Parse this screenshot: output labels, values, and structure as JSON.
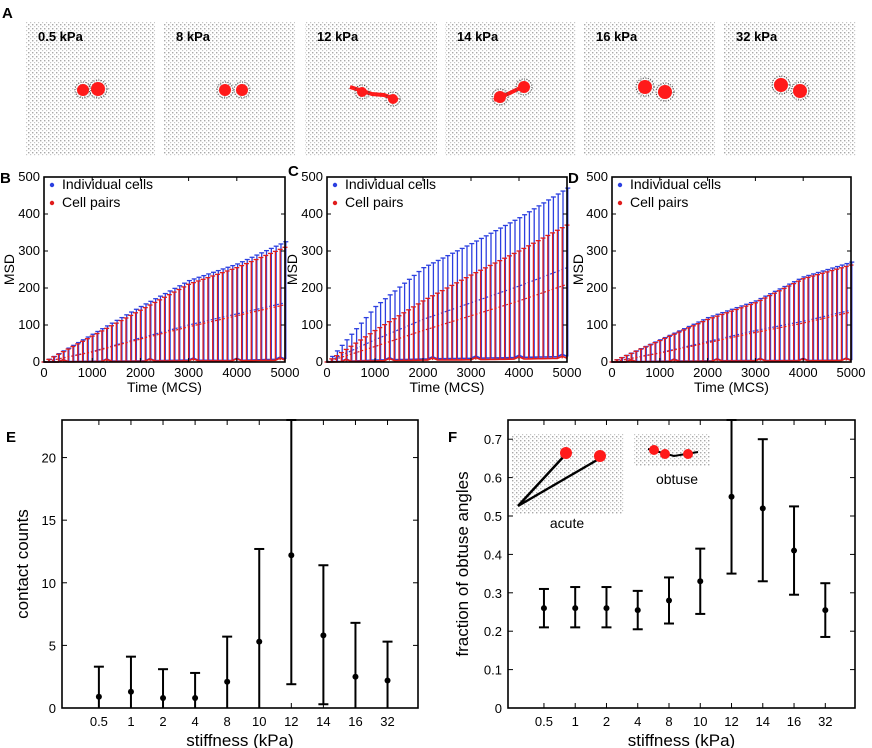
{
  "panel_labels": {
    "a": "A",
    "b": "B",
    "c": "C",
    "d": "D",
    "e": "E",
    "f": "F"
  },
  "snapshots": [
    {
      "label": "0.5 kPa",
      "cells": 2
    },
    {
      "label": "8 kPa",
      "cells": 2
    },
    {
      "label": "12 kPa",
      "cells": 2
    },
    {
      "label": "14 kPa",
      "cells": 2
    },
    {
      "label": "16 kPa",
      "cells": 2
    },
    {
      "label": "32 kPa",
      "cells": 2
    }
  ],
  "colors": {
    "individual": "#2b3fe0",
    "pairs": "#e01c1c",
    "cell": "#ff1a1a",
    "grid": "#b5b5b5"
  },
  "chart_data": [
    {
      "id": "B",
      "type": "line",
      "xlabel": "Time (MCS)",
      "ylabel": "MSD",
      "xlim": [
        0,
        5000
      ],
      "ylim": [
        0,
        500
      ],
      "xticks": [
        0,
        1000,
        2000,
        3000,
        4000,
        5000
      ],
      "yticks": [
        0,
        100,
        200,
        300,
        400,
        500
      ],
      "x": [
        0,
        1000,
        2000,
        3000,
        4000,
        5000
      ],
      "series": [
        {
          "name": "Individual cells",
          "mean": [
            0,
            28,
            65,
            100,
            130,
            160
          ],
          "upper": [
            0,
            75,
            150,
            220,
            265,
            325
          ],
          "lower": [
            0,
            2,
            3,
            5,
            4,
            8
          ]
        },
        {
          "name": "Cell pairs",
          "mean": [
            0,
            27,
            62,
            95,
            125,
            155
          ],
          "upper": [
            0,
            70,
            140,
            210,
            255,
            310
          ],
          "lower": [
            0,
            1,
            2,
            3,
            3,
            5
          ]
        }
      ]
    },
    {
      "id": "C",
      "type": "line",
      "xlabel": "Time (MCS)",
      "ylabel": "MSD",
      "xlim": [
        0,
        5000
      ],
      "ylim": [
        0,
        500
      ],
      "xticks": [
        0,
        1000,
        2000,
        3000,
        4000,
        5000
      ],
      "yticks": [
        0,
        100,
        200,
        300,
        400,
        500
      ],
      "x": [
        0,
        1000,
        2000,
        3000,
        4000,
        5000
      ],
      "series": [
        {
          "name": "Individual cells",
          "mean": [
            0,
            60,
            115,
            160,
            205,
            255
          ],
          "upper": [
            0,
            150,
            255,
            320,
            390,
            470
          ],
          "lower": [
            0,
            5,
            8,
            10,
            12,
            15
          ]
        },
        {
          "name": "Cell pairs",
          "mean": [
            0,
            42,
            85,
            125,
            165,
            210
          ],
          "upper": [
            0,
            85,
            165,
            235,
            300,
            370
          ],
          "lower": [
            0,
            3,
            5,
            6,
            8,
            10
          ]
        }
      ]
    },
    {
      "id": "D",
      "type": "line",
      "xlabel": "Time (MCS)",
      "ylabel": "MSD",
      "xlim": [
        0,
        5000
      ],
      "ylim": [
        0,
        500
      ],
      "xticks": [
        0,
        1000,
        2000,
        3000,
        4000,
        5000
      ],
      "yticks": [
        0,
        100,
        200,
        300,
        400,
        500
      ],
      "x": [
        0,
        1000,
        2000,
        3000,
        4000,
        5000
      ],
      "series": [
        {
          "name": "Individual cells",
          "mean": [
            0,
            25,
            55,
            85,
            110,
            140
          ],
          "upper": [
            0,
            60,
            120,
            165,
            230,
            270
          ],
          "lower": [
            0,
            2,
            3,
            4,
            4,
            5
          ]
        },
        {
          "name": "Cell pairs",
          "mean": [
            0,
            24,
            52,
            80,
            105,
            135
          ],
          "upper": [
            0,
            58,
            115,
            160,
            225,
            262
          ],
          "lower": [
            0,
            1,
            2,
            3,
            3,
            4
          ]
        }
      ]
    },
    {
      "id": "E",
      "type": "scatter",
      "xlabel": "stiffness (kPa)",
      "ylabel": "contact counts",
      "categories": [
        "0.5",
        "1",
        "2",
        "4",
        "8",
        "10",
        "12",
        "14",
        "16",
        "32"
      ],
      "ylim": [
        0,
        23
      ],
      "yticks": [
        0,
        5,
        10,
        15,
        20
      ],
      "mean": [
        0.9,
        1.3,
        0.8,
        0.8,
        2.1,
        5.3,
        12.2,
        5.8,
        2.5,
        2.2
      ],
      "upper": [
        3.3,
        4.1,
        3.1,
        2.8,
        5.7,
        12.7,
        23,
        11.4,
        6.8,
        5.3
      ],
      "lower": [
        0,
        0,
        0,
        0,
        0,
        0,
        1.9,
        0.3,
        0,
        0
      ]
    },
    {
      "id": "F",
      "type": "scatter",
      "xlabel": "stiffness (kPa)",
      "ylabel": "fraction of obtuse angles",
      "categories": [
        "0.5",
        "1",
        "2",
        "4",
        "8",
        "10",
        "12",
        "14",
        "16",
        "32"
      ],
      "ylim": [
        0,
        0.75
      ],
      "yticks": [
        0,
        0.1,
        0.2,
        0.3,
        0.4,
        0.5,
        0.6,
        0.7
      ],
      "mean": [
        0.26,
        0.26,
        0.26,
        0.255,
        0.28,
        0.33,
        0.55,
        0.52,
        0.41,
        0.255
      ],
      "upper": [
        0.31,
        0.315,
        0.315,
        0.305,
        0.34,
        0.415,
        0.75,
        0.7,
        0.525,
        0.325
      ],
      "lower": [
        0.21,
        0.21,
        0.21,
        0.205,
        0.22,
        0.245,
        0.35,
        0.33,
        0.295,
        0.185
      ],
      "insets": {
        "acute": "acute",
        "obtuse": "obtuse"
      }
    }
  ]
}
